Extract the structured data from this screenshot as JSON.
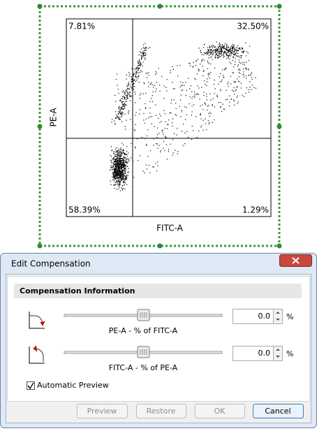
{
  "plot": {
    "quadrants": {
      "upper_left": "7.81%",
      "upper_right": "32.50%",
      "lower_left": "58.39%",
      "lower_right": "1.29%"
    },
    "x_label": "FITC-A",
    "y_label": "PE-A"
  },
  "dialog": {
    "title": "Edit Compensation",
    "section": "Compensation Information",
    "sliders": [
      {
        "label": "PE-A - % of FITC-A",
        "value": "0.0",
        "unit": "%"
      },
      {
        "label": "FITC-A - % of PE-A",
        "value": "0.0",
        "unit": "%"
      }
    ],
    "checkbox": "Automatic Preview",
    "buttons": [
      "Preview",
      "Restore",
      "OK",
      "Cancel"
    ]
  }
}
